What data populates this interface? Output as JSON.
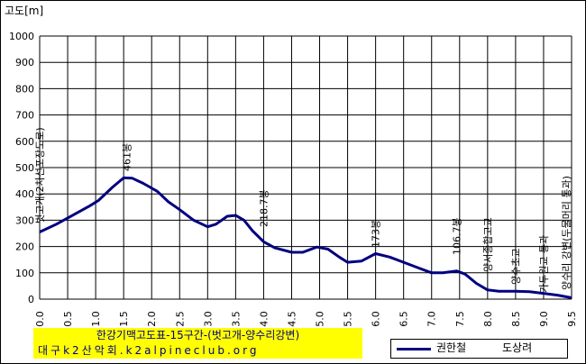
{
  "chart_data": {
    "type": "line",
    "ylabel": "고도[m]",
    "xlabel": "",
    "ylim": [
      0,
      1000
    ],
    "xlim": [
      0,
      9.5
    ],
    "y_ticks": [
      0,
      100,
      200,
      300,
      400,
      500,
      600,
      700,
      800,
      900,
      1000
    ],
    "x_ticks": [
      0,
      0.5,
      1,
      1.5,
      2,
      2.5,
      3,
      3.5,
      4,
      4.5,
      5,
      5.5,
      6,
      6.5,
      7,
      7.5,
      8,
      8.5,
      9,
      9.5
    ],
    "x_tick_labels": [
      "0.0",
      "0.5",
      "1.0",
      "1.5",
      "2.0",
      "2.5",
      "3.0",
      "3.5",
      "4.0",
      "4.5",
      "5.0",
      "5.5",
      "6.0",
      "6.5",
      "7.0",
      "7.5",
      "8.0",
      "8.5",
      "9.0",
      "9.5"
    ],
    "grid": true,
    "series": [
      {
        "name": "권한철",
        "color": "#000080",
        "x": [
          0,
          0.3,
          0.6,
          0.9,
          1.05,
          1.3,
          1.5,
          1.65,
          1.85,
          2.1,
          2.3,
          2.5,
          2.75,
          3.0,
          3.15,
          3.35,
          3.5,
          3.65,
          3.8,
          4.0,
          4.2,
          4.5,
          4.7,
          4.95,
          5.15,
          5.35,
          5.5,
          5.75,
          6.0,
          6.25,
          6.5,
          6.75,
          7.0,
          7.2,
          7.45,
          7.6,
          7.8,
          8.0,
          8.2,
          8.5,
          8.75,
          9.0,
          9.25,
          9.5
        ],
        "values": [
          255,
          285,
          320,
          355,
          375,
          425,
          461,
          460,
          440,
          410,
          370,
          340,
          300,
          275,
          285,
          315,
          318,
          300,
          260,
          218,
          195,
          178,
          178,
          198,
          190,
          160,
          140,
          145,
          173,
          160,
          140,
          120,
          100,
          100,
          107,
          95,
          60,
          35,
          30,
          30,
          28,
          22,
          15,
          5
        ]
      }
    ],
    "annotations": [
      {
        "x": 0.0,
        "y": 255,
        "text": "벗고개(2차선포장도로)"
      },
      {
        "x": 1.55,
        "y": 461,
        "text": "461봉"
      },
      {
        "x": 4.0,
        "y": 218,
        "text": "218.7봉"
      },
      {
        "x": 6.0,
        "y": 173,
        "text": "173봉"
      },
      {
        "x": 7.45,
        "y": 107,
        "text": "106.7봉"
      },
      {
        "x": 8.0,
        "y": 35,
        "text": "양서종합고교"
      },
      {
        "x": 8.5,
        "y": 30,
        "text": "양수초교"
      },
      {
        "x": 9.0,
        "y": 22,
        "text": "가두원교 통과"
      },
      {
        "x": 9.5,
        "y": 5,
        "text": "양수리 강변(두물머리 통과)"
      }
    ],
    "title": "한강기맥고도표-15구간-(벗고개-양수리강변)",
    "subtitle": "대구k2산악회.k2alpineclub.org",
    "legend": {
      "placement": "bottom-right",
      "author_label": "도상려"
    }
  }
}
